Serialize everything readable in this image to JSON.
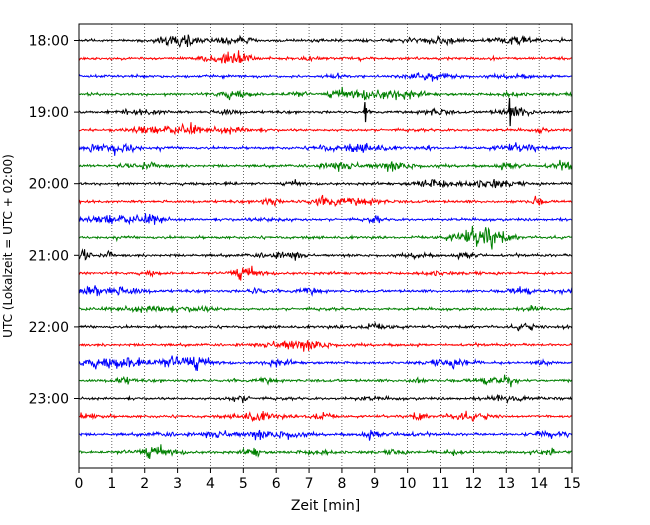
{
  "chart_data": {
    "type": "line",
    "title": "",
    "xlabel": "Zeit  [min]",
    "ylabel": "UTC (Lokalzeit = UTC + 02:00)",
    "xlim": [
      0,
      15
    ],
    "x_ticks": [
      "0",
      "1",
      "2",
      "3",
      "4",
      "5",
      "6",
      "7",
      "8",
      "9",
      "10",
      "11",
      "12",
      "13",
      "14",
      "15"
    ],
    "y_tick_labels": [
      "18:00",
      "19:00",
      "20:00",
      "21:00",
      "22:00",
      "23:00"
    ],
    "grid": "vertical dotted at each minute",
    "trace_interval_minutes": 15,
    "trace_start": "18:00",
    "trace_count": 24,
    "color_cycle": [
      "#000000",
      "#ff0000",
      "#0000ff",
      "#008000"
    ],
    "events": [
      {
        "trace_start": "19:00",
        "minute": 8.7,
        "note": "spike"
      },
      {
        "trace_start": "19:00",
        "minute": 13.1,
        "note": "spike"
      }
    ]
  }
}
